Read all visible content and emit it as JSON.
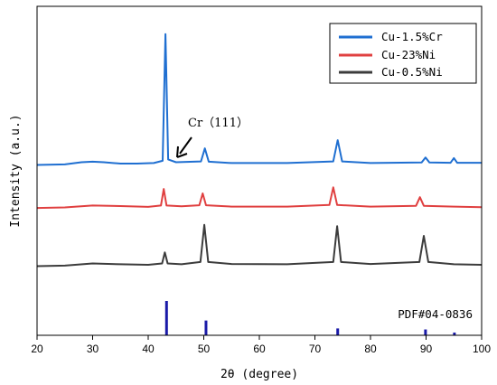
{
  "chart_data": {
    "type": "line",
    "xlabel": "2θ (degree)",
    "ylabel": "Intensity (a.u.)",
    "xlim": [
      20,
      100
    ],
    "xticks": [
      20,
      30,
      40,
      50,
      60,
      70,
      80,
      90,
      100
    ],
    "yticks": "none",
    "legend": {
      "placement": "top-right"
    },
    "series": [
      {
        "name": "Cu-1.5%Cr",
        "color": "#1f6fd1",
        "baseline": 3.4,
        "points": [
          [
            20,
            3.35
          ],
          [
            25,
            3.37
          ],
          [
            28,
            3.45
          ],
          [
            30,
            3.47
          ],
          [
            32,
            3.45
          ],
          [
            35,
            3.4
          ],
          [
            38,
            3.4
          ],
          [
            41,
            3.42
          ],
          [
            42.6,
            3.5
          ],
          [
            43.1,
            8.1
          ],
          [
            43.6,
            3.55
          ],
          [
            45,
            3.45
          ],
          [
            49.5,
            3.48
          ],
          [
            50.2,
            3.95
          ],
          [
            50.9,
            3.47
          ],
          [
            55,
            3.42
          ],
          [
            65,
            3.42
          ],
          [
            73.3,
            3.48
          ],
          [
            74.1,
            4.25
          ],
          [
            74.9,
            3.48
          ],
          [
            80,
            3.42
          ],
          [
            89.2,
            3.44
          ],
          [
            89.9,
            3.62
          ],
          [
            90.6,
            3.44
          ],
          [
            94.4,
            3.43
          ],
          [
            95.0,
            3.6
          ],
          [
            95.6,
            3.43
          ],
          [
            100,
            3.43
          ]
        ]
      },
      {
        "name": "Cu-23%Ni",
        "color": "#e04040",
        "baseline": 2.1,
        "points": [
          [
            20,
            2.03
          ],
          [
            25,
            2.05
          ],
          [
            30,
            2.12
          ],
          [
            35,
            2.1
          ],
          [
            40,
            2.07
          ],
          [
            42.3,
            2.12
          ],
          [
            42.8,
            2.72
          ],
          [
            43.3,
            2.12
          ],
          [
            46,
            2.09
          ],
          [
            49.2,
            2.13
          ],
          [
            49.8,
            2.56
          ],
          [
            50.4,
            2.13
          ],
          [
            55,
            2.08
          ],
          [
            65,
            2.08
          ],
          [
            72.6,
            2.14
          ],
          [
            73.3,
            2.78
          ],
          [
            74.0,
            2.14
          ],
          [
            80,
            2.08
          ],
          [
            88.2,
            2.11
          ],
          [
            88.9,
            2.42
          ],
          [
            89.6,
            2.11
          ],
          [
            95,
            2.08
          ],
          [
            100,
            2.06
          ]
        ]
      },
      {
        "name": "Cu-0.5%Ni",
        "color": "#3c3c3c",
        "baseline": 0.5,
        "points": [
          [
            20,
            0.45
          ],
          [
            25,
            0.47
          ],
          [
            30,
            0.55
          ],
          [
            35,
            0.52
          ],
          [
            40,
            0.5
          ],
          [
            42.5,
            0.55
          ],
          [
            43.0,
            0.95
          ],
          [
            43.5,
            0.55
          ],
          [
            46,
            0.52
          ],
          [
            49.4,
            0.6
          ],
          [
            50.1,
            1.95
          ],
          [
            50.8,
            0.6
          ],
          [
            55,
            0.53
          ],
          [
            65,
            0.52
          ],
          [
            73.3,
            0.6
          ],
          [
            74.0,
            1.9
          ],
          [
            74.7,
            0.6
          ],
          [
            80,
            0.53
          ],
          [
            88.8,
            0.6
          ],
          [
            89.6,
            1.55
          ],
          [
            90.4,
            0.6
          ],
          [
            95,
            0.52
          ],
          [
            100,
            0.5
          ]
        ]
      }
    ],
    "reference": {
      "label": "PDF#04-0836",
      "color": "#1a1aa8",
      "sticks": [
        [
          43.3,
          1.0
        ],
        [
          50.4,
          0.43
        ],
        [
          74.1,
          0.2
        ],
        [
          89.9,
          0.17
        ],
        [
          95.1,
          0.08
        ]
      ]
    },
    "annotations": [
      {
        "text": "Cr（111）",
        "arrow_tip_x": 44.6
      }
    ]
  }
}
